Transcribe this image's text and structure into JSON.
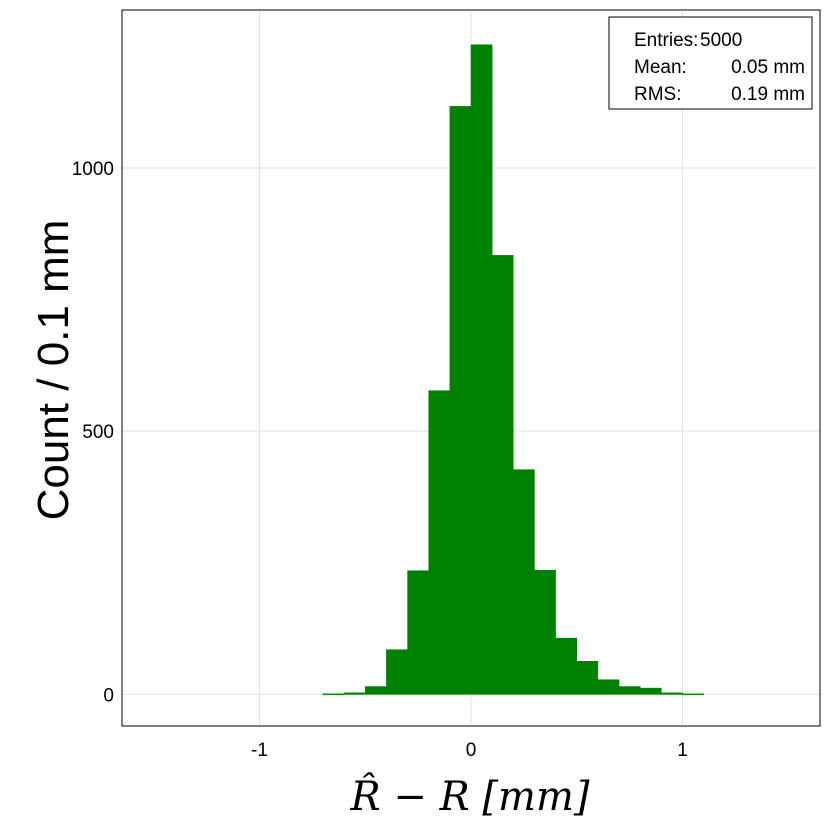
{
  "chart_data": {
    "type": "bar",
    "title": "",
    "xlabel": "R̂ − R [mm]",
    "ylabel": "Count / 0.1 mm",
    "bin_width": 0.1,
    "bins": [
      {
        "x0": -0.7,
        "x1": -0.6,
        "value": 1
      },
      {
        "x0": -0.6,
        "x1": -0.5,
        "value": 3
      },
      {
        "x0": -0.5,
        "x1": -0.4,
        "value": 15
      },
      {
        "x0": -0.4,
        "x1": -0.3,
        "value": 85
      },
      {
        "x0": -0.3,
        "x1": -0.2,
        "value": 235
      },
      {
        "x0": -0.2,
        "x1": -0.1,
        "value": 577
      },
      {
        "x0": -0.1,
        "x1": 0.0,
        "value": 1117
      },
      {
        "x0": 0.0,
        "x1": 0.1,
        "value": 1234
      },
      {
        "x0": 0.1,
        "x1": 0.2,
        "value": 834
      },
      {
        "x0": 0.2,
        "x1": 0.3,
        "value": 427
      },
      {
        "x0": 0.3,
        "x1": 0.4,
        "value": 236
      },
      {
        "x0": 0.4,
        "x1": 0.5,
        "value": 107
      },
      {
        "x0": 0.5,
        "x1": 0.6,
        "value": 63
      },
      {
        "x0": 0.6,
        "x1": 0.7,
        "value": 28
      },
      {
        "x0": 0.7,
        "x1": 0.8,
        "value": 15
      },
      {
        "x0": 0.8,
        "x1": 0.9,
        "value": 12
      },
      {
        "x0": 0.9,
        "x1": 1.0,
        "value": 3
      },
      {
        "x0": 1.0,
        "x1": 1.1,
        "value": 1
      }
    ],
    "xlim": [
      -1.65,
      1.65
    ],
    "ylim": [
      -60,
      1300
    ],
    "xticks": [
      -1,
      0,
      1
    ],
    "xtick_labels": [
      "-1",
      "0",
      "1"
    ],
    "yticks": [
      0,
      500,
      1000
    ],
    "ytick_labels": [
      "0",
      "500",
      "1000"
    ],
    "grid": true,
    "bar_color": "#008000",
    "legend": {
      "placement": "top-right",
      "lines": [
        {
          "label": "Entries:",
          "value": "5000"
        },
        {
          "label": "Mean:",
          "value": "0.05 mm"
        },
        {
          "label": "RMS:",
          "value": "0.19 mm"
        }
      ]
    }
  }
}
